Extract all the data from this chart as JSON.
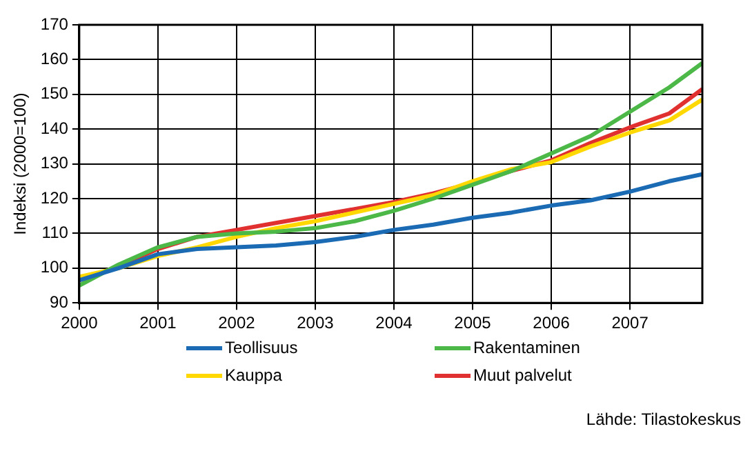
{
  "chart_data": {
    "type": "line",
    "ylabel": "Indeksi (2000=100)",
    "x": [
      2000,
      2000.5,
      2001,
      2001.5,
      2002,
      2002.5,
      2003,
      2003.5,
      2004,
      2004.5,
      2005,
      2005.5,
      2006,
      2006.5,
      2007,
      2007.5,
      2007.92
    ],
    "series": [
      {
        "name": "Teollisuus",
        "color": "#1a6ab4",
        "values": [
          96.5,
          100,
          104,
          105.5,
          106,
          106.5,
          107.5,
          109,
          111,
          112.5,
          114.5,
          116,
          118,
          119.5,
          122,
          125,
          127
        ]
      },
      {
        "name": "Rakentaminen",
        "color": "#4cb848",
        "values": [
          95,
          101,
          106,
          109,
          110,
          110.5,
          111.5,
          113.5,
          116.5,
          120,
          124,
          128,
          133,
          138,
          145,
          152,
          159
        ]
      },
      {
        "name": "Kauppa",
        "color": "#ffd800",
        "values": [
          97.5,
          100,
          103.5,
          106,
          109,
          111.5,
          113.5,
          116,
          118.5,
          121,
          125,
          128.5,
          130.5,
          135,
          139,
          142.5,
          148.5
        ]
      },
      {
        "name": "Muut palvelut",
        "color": "#e03030",
        "values": [
          96.5,
          100.5,
          105.5,
          109,
          111,
          113,
          115,
          117,
          119,
          121.5,
          124.5,
          128,
          131,
          136,
          140.5,
          144.5,
          151.5
        ]
      }
    ],
    "xlim": [
      2000,
      2007.92
    ],
    "xticks": [
      2000,
      2001,
      2002,
      2003,
      2004,
      2005,
      2006,
      2007
    ],
    "ylim": [
      90,
      170
    ],
    "yticks": [
      90,
      100,
      110,
      120,
      130,
      140,
      150,
      160,
      170
    ],
    "grid": true,
    "legend": "bottom",
    "marker": "none",
    "line_style": "solid",
    "annotations": [
      "Lähde: Tilastokeskus"
    ]
  }
}
